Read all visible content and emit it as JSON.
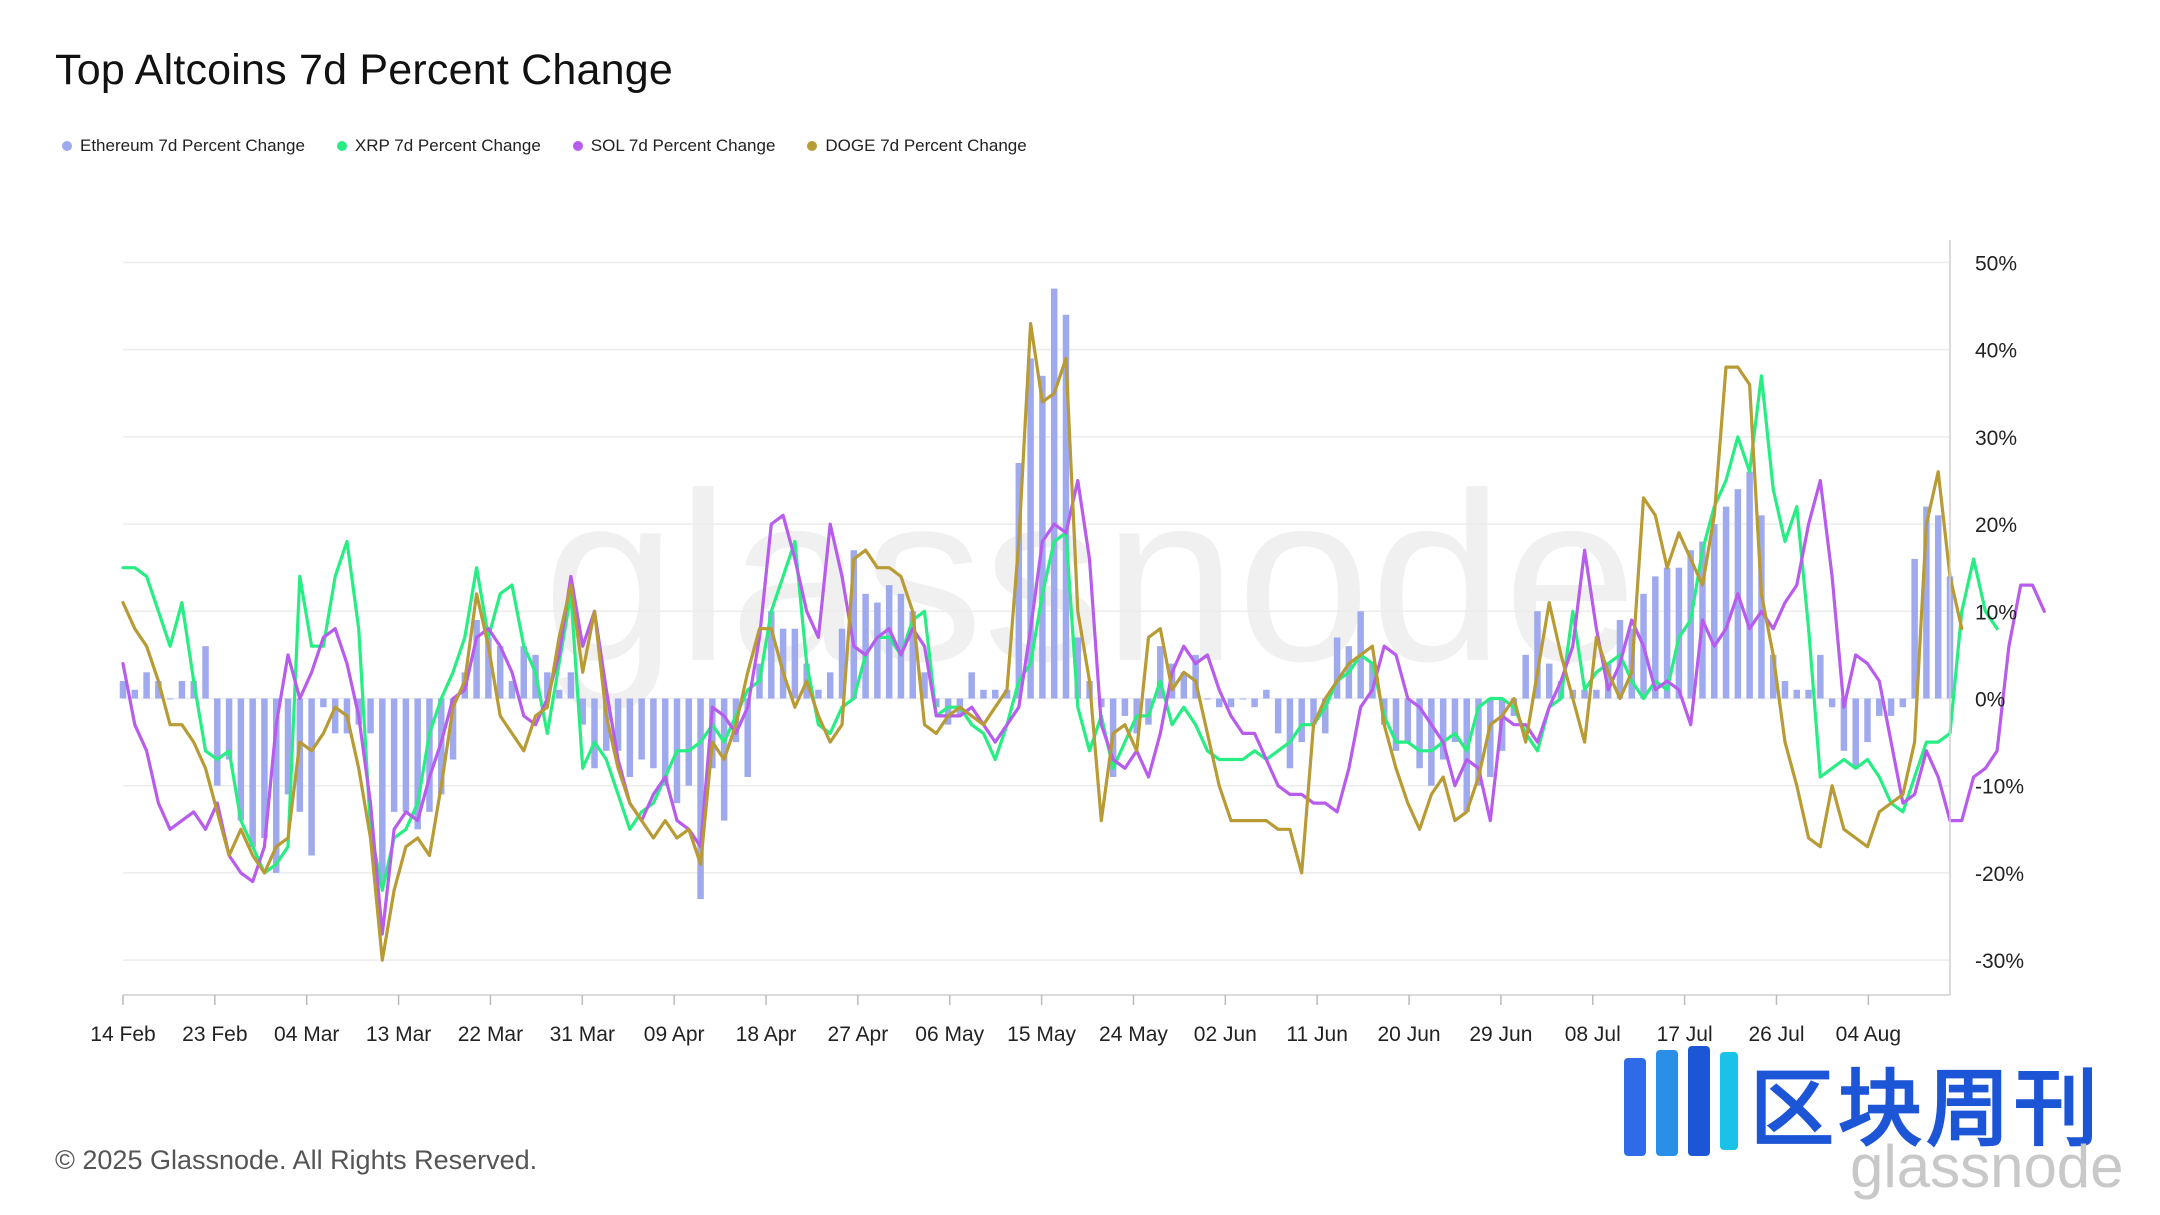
{
  "title": "Top Altcoins 7d Percent Change",
  "footer": "© 2025 Glassnode. All Rights Reserved.",
  "watermark": "glassnode",
  "brand": {
    "logo_name": "blockchain-weekly-logo",
    "cn_text": "区块周刊",
    "sub_text": "glassnode"
  },
  "colors": {
    "eth": "#9fa9ee",
    "xrp": "#27ee83",
    "sol": "#b85cee",
    "doge": "#b89b34",
    "grid": "#ececec",
    "axis": "#222222"
  },
  "chart_data": {
    "type": "line",
    "title": "Top Altcoins 7d Percent Change",
    "ylim": [
      -34,
      52
    ],
    "yticks": [
      50,
      40,
      30,
      20,
      10,
      0,
      -10,
      -20,
      -30
    ],
    "ytick_labels": [
      "50%",
      "40%",
      "30%",
      "20%",
      "10%",
      "0%",
      "-10%",
      "-20%",
      "-30%"
    ],
    "y_axis_side": "right",
    "grid": true,
    "legend_position": "top-left",
    "x_start": "2025-02-14",
    "x_end": "2025-08-12",
    "xtick_dates": [
      "2025-02-14",
      "2025-02-23",
      "2025-03-04",
      "2025-03-13",
      "2025-03-22",
      "2025-03-31",
      "2025-04-09",
      "2025-04-18",
      "2025-04-27",
      "2025-05-06",
      "2025-05-15",
      "2025-05-24",
      "2025-06-02",
      "2025-06-11",
      "2025-06-20",
      "2025-06-29",
      "2025-07-08",
      "2025-07-17",
      "2025-07-26",
      "2025-08-04"
    ],
    "xtick_labels": [
      "14 Feb",
      "23 Feb",
      "04 Mar",
      "13 Mar",
      "22 Mar",
      "31 Mar",
      "09 Apr",
      "18 Apr",
      "27 Apr",
      "06 May",
      "15 May",
      "24 May",
      "02 Jun",
      "11 Jun",
      "20 Jun",
      "29 Jun",
      "08 Jul",
      "17 Jul",
      "26 Jul",
      "04 Aug"
    ],
    "series": [
      {
        "name": "Ethereum 7d Percent Change",
        "kind": "bar",
        "color": "#9fa9ee",
        "values": [
          2,
          1,
          3,
          2,
          0,
          2,
          2,
          6,
          -10,
          -7,
          -14,
          -17,
          -16,
          -20,
          -11,
          -13,
          -18,
          -1,
          -4,
          -4,
          -3,
          -4,
          -21,
          -13,
          -13,
          -15,
          -13,
          -11,
          -7,
          3,
          9,
          7,
          6,
          2,
          6,
          5,
          3,
          1,
          3,
          -3,
          -8,
          -6,
          -6,
          -9,
          -7,
          -8,
          -10,
          -12,
          -10,
          -23,
          -8,
          -14,
          -5,
          -9,
          4,
          10,
          8,
          8,
          4,
          1,
          3,
          8,
          17,
          12,
          11,
          13,
          12,
          10,
          3,
          -1,
          -3,
          -2,
          3,
          1,
          1,
          1,
          27,
          39,
          37,
          47,
          44,
          7,
          2,
          -1,
          -9,
          -2,
          -4,
          -3,
          6,
          4,
          3,
          5,
          0,
          -1,
          -1,
          0,
          -1,
          1,
          -4,
          -8,
          -5,
          -3,
          -4,
          7,
          6,
          10,
          4,
          -3,
          -6,
          -5,
          -8,
          -10,
          -7,
          -5,
          -13,
          -10,
          -9,
          -6,
          -2,
          5,
          10,
          4,
          2,
          1,
          1,
          1,
          4,
          9,
          8,
          12,
          14,
          15,
          15,
          17,
          18,
          20,
          22,
          24,
          26,
          21,
          5,
          2,
          1,
          1,
          5,
          -1,
          -6,
          -8,
          -5,
          -2,
          -2,
          -1,
          16,
          22,
          21,
          14
        ]
      },
      {
        "name": "XRP 7d Percent Change",
        "kind": "line",
        "color": "#27ee83",
        "values": [
          15,
          15,
          14,
          10,
          6,
          11,
          2,
          -6,
          -7,
          -6,
          -14,
          -17,
          -20,
          -19,
          -17,
          14,
          6,
          6,
          14,
          18,
          8,
          -15,
          -22,
          -16,
          -15,
          -12,
          -4,
          0,
          3,
          7,
          15,
          7,
          12,
          13,
          6,
          3,
          -4,
          4,
          12,
          -8,
          -5,
          -7,
          -11,
          -15,
          -13,
          -12,
          -9,
          -6,
          -6,
          -5,
          -3,
          -5,
          -2,
          1,
          2,
          10,
          14,
          18,
          4,
          -3,
          -4,
          -1,
          0,
          5,
          7,
          7,
          5,
          9,
          10,
          -2,
          -1,
          -1,
          -3,
          -4,
          -7,
          -3,
          2,
          4,
          12,
          18,
          19,
          -1,
          -6,
          -2,
          -8,
          -5,
          -2,
          -2,
          2,
          -3,
          -1,
          -3,
          -6,
          -7,
          -7,
          -7,
          -6,
          -7,
          -6,
          -5,
          -3,
          -3,
          -1,
          2,
          3,
          5,
          4,
          -2,
          -5,
          -5,
          -6,
          -6,
          -5,
          -4,
          -6,
          -1,
          0,
          0,
          -1,
          -4,
          -6,
          -1,
          0,
          10,
          1,
          3,
          4,
          5,
          2,
          0,
          2,
          1,
          7,
          9,
          17,
          22,
          25,
          30,
          26,
          37,
          24,
          18,
          22,
          8,
          -9,
          -8,
          -7,
          -8,
          -7,
          -9,
          -12,
          -13,
          -9,
          -5,
          -5,
          -4,
          10,
          16,
          10,
          8
        ]
      },
      {
        "name": "SOL 7d Percent Change",
        "kind": "line",
        "color": "#b85cee",
        "values": [
          4,
          -3,
          -6,
          -12,
          -15,
          -14,
          -13,
          -15,
          -12,
          -18,
          -20,
          -21,
          -17,
          -3,
          5,
          0,
          3,
          7,
          8,
          4,
          -2,
          -12,
          -27,
          -15,
          -13,
          -14,
          -9,
          -5,
          0,
          1,
          7,
          8,
          6,
          3,
          -2,
          -3,
          0,
          5,
          14,
          6,
          10,
          1,
          -7,
          -12,
          -14,
          -11,
          -9,
          -14,
          -15,
          -17,
          -1,
          -2,
          -4,
          -1,
          7,
          20,
          21,
          16,
          10,
          7,
          20,
          14,
          6,
          5,
          7,
          8,
          5,
          8,
          6,
          -2,
          -2,
          -2,
          -1,
          -3,
          -5,
          -3,
          -1,
          8,
          18,
          20,
          19,
          25,
          16,
          -3,
          -7,
          -8,
          -6,
          -9,
          -4,
          3,
          6,
          4,
          5,
          1,
          -2,
          -4,
          -4,
          -7,
          -10,
          -11,
          -11,
          -12,
          -12,
          -13,
          -8,
          -1,
          1,
          6,
          5,
          0,
          -1,
          -3,
          -5,
          -10,
          -7,
          -8,
          -14,
          -2,
          -3,
          -3,
          -5,
          -1,
          2,
          6,
          17,
          8,
          1,
          4,
          9,
          6,
          1,
          2,
          1,
          -3,
          9,
          6,
          8,
          12,
          8,
          10,
          8,
          11,
          13,
          20,
          25,
          14,
          -1,
          5,
          4,
          2,
          -5,
          -12,
          -11,
          -6,
          -9,
          -14,
          -14,
          -9,
          -8,
          -6,
          6,
          13,
          13,
          10
        ]
      },
      {
        "name": "DOGE 7d Percent Change",
        "kind": "line",
        "color": "#b89b34",
        "values": [
          11,
          8,
          6,
          2,
          -3,
          -3,
          -5,
          -8,
          -13,
          -18,
          -15,
          -18,
          -20,
          -17,
          -16,
          -5,
          -6,
          -4,
          -1,
          -2,
          -8,
          -16,
          -30,
          -22,
          -17,
          -16,
          -18,
          -10,
          -1,
          2,
          12,
          6,
          -2,
          -4,
          -6,
          -2,
          -1,
          7,
          13,
          3,
          10,
          -2,
          -8,
          -12,
          -14,
          -16,
          -14,
          -16,
          -15,
          -19,
          -5,
          -7,
          -3,
          3,
          8,
          8,
          3,
          -1,
          2,
          -2,
          -5,
          -3,
          16,
          17,
          15,
          15,
          14,
          10,
          -3,
          -4,
          -2,
          -1,
          -2,
          -3,
          -1,
          1,
          18,
          43,
          34,
          35,
          39,
          10,
          2,
          -14,
          -4,
          -3,
          -6,
          7,
          8,
          1,
          3,
          2,
          -4,
          -10,
          -14,
          -14,
          -14,
          -14,
          -15,
          -15,
          -20,
          -3,
          0,
          2,
          4,
          5,
          6,
          -3,
          -8,
          -12,
          -15,
          -11,
          -9,
          -14,
          -13,
          -9,
          -3,
          -2,
          0,
          -5,
          3,
          11,
          5,
          0,
          -5,
          7,
          3,
          0,
          3,
          23,
          21,
          15,
          19,
          16,
          13,
          21,
          38,
          38,
          36,
          12,
          5,
          -5,
          -10,
          -16,
          -17,
          -10,
          -15,
          -16,
          -17,
          -13,
          -12,
          -11,
          -5,
          20,
          26,
          14,
          8
        ]
      }
    ]
  }
}
